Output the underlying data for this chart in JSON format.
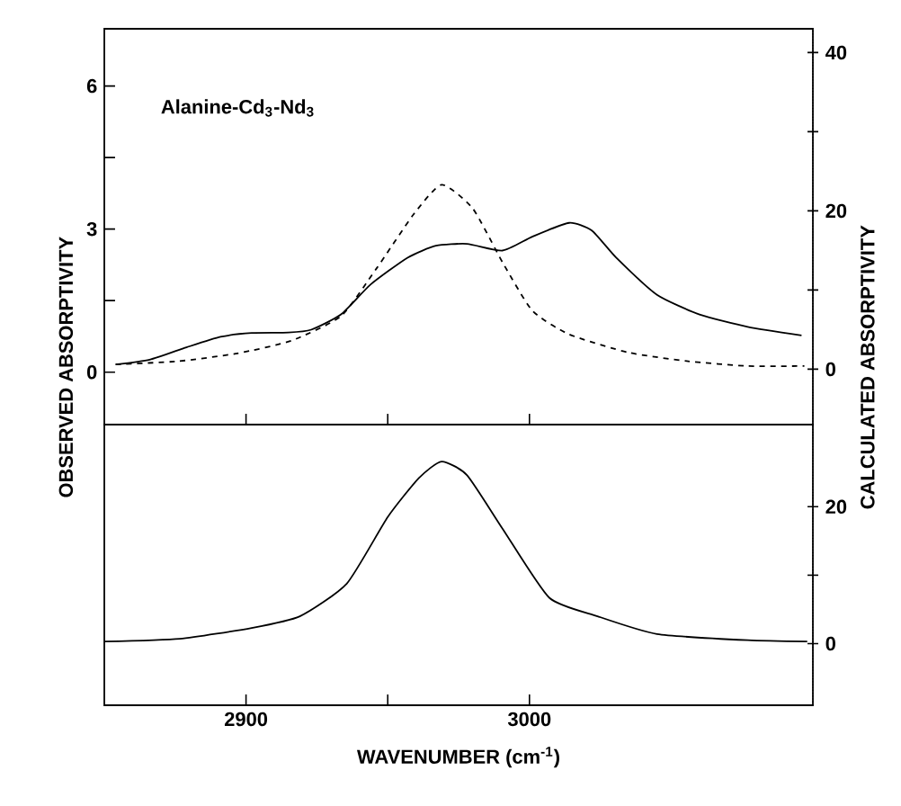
{
  "chart_data": [
    {
      "type": "line",
      "xlim": [
        2850,
        3100
      ],
      "xticks": [
        2900,
        3000
      ],
      "ylim": [
        -1.1,
        7.2
      ],
      "yticks": [
        0,
        3,
        6
      ],
      "y2lim": [
        -7,
        43
      ],
      "y2ticks": [
        0,
        20,
        40
      ],
      "ylabel": "OBSERVED ABSORPTIVITY",
      "y2label": "CALCULATED ABSORPTIVITY",
      "annotations": [
        "Alanine-Cd$_{3}$-Nd$_{3}$"
      ],
      "tick_labels": "y",
      "series": [
        {
          "color": "#000000",
          "line_style": "solid",
          "x": [
            2854,
            2866,
            2879,
            2891,
            2902,
            2915,
            2923,
            2933.5,
            2944,
            2957,
            2967,
            2978,
            2990.5,
            3001,
            3014,
            3022,
            3030.6,
            3045,
            3060,
            3077,
            3096
          ],
          "values": [
            0.16,
            0.26,
            0.52,
            0.74,
            0.82,
            0.83,
            0.89,
            1.21,
            1.84,
            2.4,
            2.65,
            2.69,
            2.55,
            2.84,
            3.13,
            2.97,
            2.4,
            1.62,
            1.21,
            0.95,
            0.77
          ]
        },
        {
          "color": "#000000",
          "line_style": "dashed",
          "axis": "y2",
          "x": [
            2854,
            2876,
            2897,
            2916,
            2933.5,
            2946,
            2959,
            2969,
            2980,
            2990.5,
            3001,
            3014,
            3035,
            3056,
            3077,
            3097
          ],
          "values": [
            0.6,
            1.0,
            2.0,
            3.6,
            6.7,
            12.7,
            19.5,
            23.3,
            20.3,
            13.5,
            7.4,
            4.4,
            2.1,
            1.0,
            0.4,
            0.4
          ]
        }
      ]
    },
    {
      "type": "line",
      "xlim": [
        2850,
        3100
      ],
      "xticks": [
        2900,
        3000
      ],
      "xlabel": "WAVENUMBER (cm$^{-1}$)",
      "y2lim": [
        -9,
        32
      ],
      "y2ticks": [
        0,
        20
      ],
      "series": [
        {
          "color": "#000000",
          "line_style": "solid",
          "axis": "y2",
          "x": [
            2850,
            2876.6,
            2902,
            2919,
            2935.6,
            2950,
            2961,
            2969,
            2978,
            2990.5,
            3007,
            3024,
            3045,
            3077,
            3098
          ],
          "values": [
            0.3,
            0.7,
            2.3,
            4.0,
            8.8,
            18.5,
            24.2,
            26.6,
            24.6,
            16.8,
            6.7,
            4.0,
            1.4,
            0.5,
            0.3
          ]
        }
      ]
    }
  ]
}
